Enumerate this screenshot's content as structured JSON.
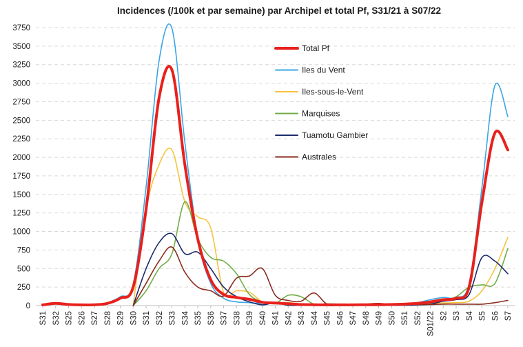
{
  "chart_data": {
    "type": "line",
    "title": "Incidences (/100k et par semaine) par Archipel et total Pf, S31/21 à S07/22",
    "xlabel": "",
    "ylabel": "",
    "ylim": [
      0,
      3750
    ],
    "yticks": [
      0,
      250,
      500,
      750,
      1000,
      1250,
      1500,
      1750,
      2000,
      2250,
      2500,
      2750,
      3000,
      3250,
      3500,
      3750
    ],
    "grid": true,
    "legend_position": "upper-center",
    "categories": [
      "S31",
      "S32",
      "S25",
      "S26",
      "S27",
      "S28",
      "S29",
      "S30",
      "S31",
      "S32",
      "S33",
      "S34",
      "S35",
      "S36",
      "S37",
      "S38",
      "S39",
      "S40",
      "S41",
      "S42",
      "S43",
      "S44",
      "S45",
      "S46",
      "S47",
      "S48",
      "S49",
      "S50",
      "S51",
      "S52",
      "S01/22",
      "S2",
      "S3",
      "S4",
      "S5",
      "S6",
      "S7"
    ],
    "series": [
      {
        "name": "Total Pf",
        "color": "#e8211d",
        "width": 4,
        "values": [
          10,
          30,
          15,
          10,
          12,
          30,
          100,
          250,
          1300,
          2800,
          3180,
          1900,
          900,
          350,
          150,
          110,
          85,
          45,
          35,
          25,
          15,
          12,
          10,
          10,
          10,
          12,
          12,
          15,
          20,
          30,
          50,
          80,
          100,
          250,
          1400,
          2330,
          2100
        ]
      },
      {
        "name": "Iles du Vent",
        "color": "#3aa5e6",
        "width": 1.6,
        "values": [
          10,
          30,
          15,
          10,
          12,
          40,
          120,
          290,
          1600,
          3300,
          3740,
          2200,
          900,
          300,
          100,
          50,
          40,
          30,
          25,
          20,
          15,
          12,
          10,
          10,
          10,
          12,
          12,
          15,
          20,
          40,
          80,
          110,
          110,
          300,
          1600,
          2970,
          2550
        ]
      },
      {
        "name": "Iles-sous-le-Vent",
        "color": "#f7c23e",
        "width": 1.6,
        "values": [
          null,
          null,
          null,
          null,
          null,
          null,
          null,
          0,
          1300,
          1900,
          2100,
          1400,
          1200,
          1050,
          180,
          200,
          180,
          50,
          35,
          40,
          20,
          15,
          10,
          10,
          10,
          10,
          10,
          15,
          20,
          25,
          30,
          35,
          40,
          60,
          200,
          500,
          920
        ]
      },
      {
        "name": "Marquises",
        "color": "#70ad47",
        "width": 1.6,
        "values": [
          null,
          null,
          null,
          null,
          null,
          null,
          null,
          0,
          200,
          500,
          700,
          1400,
          900,
          650,
          600,
          430,
          150,
          50,
          30,
          140,
          120,
          20,
          25,
          20,
          15,
          20,
          15,
          20,
          25,
          30,
          40,
          70,
          120,
          250,
          280,
          300,
          770
        ]
      },
      {
        "name": "Tuamotu Gambier",
        "color": "#1a2b6b",
        "width": 1.6,
        "values": [
          null,
          null,
          null,
          null,
          null,
          null,
          null,
          0,
          500,
          850,
          970,
          700,
          720,
          500,
          250,
          120,
          50,
          10,
          40,
          5,
          5,
          5,
          5,
          5,
          5,
          5,
          5,
          5,
          5,
          10,
          20,
          60,
          80,
          150,
          650,
          600,
          430
        ]
      },
      {
        "name": "Australes",
        "color": "#8a2b1e",
        "width": 1.6,
        "values": [
          null,
          null,
          null,
          null,
          null,
          null,
          null,
          0,
          300,
          600,
          790,
          450,
          250,
          200,
          130,
          370,
          400,
          500,
          140,
          70,
          60,
          170,
          20,
          15,
          10,
          20,
          30,
          15,
          20,
          15,
          15,
          20,
          20,
          20,
          20,
          40,
          70
        ]
      }
    ]
  }
}
